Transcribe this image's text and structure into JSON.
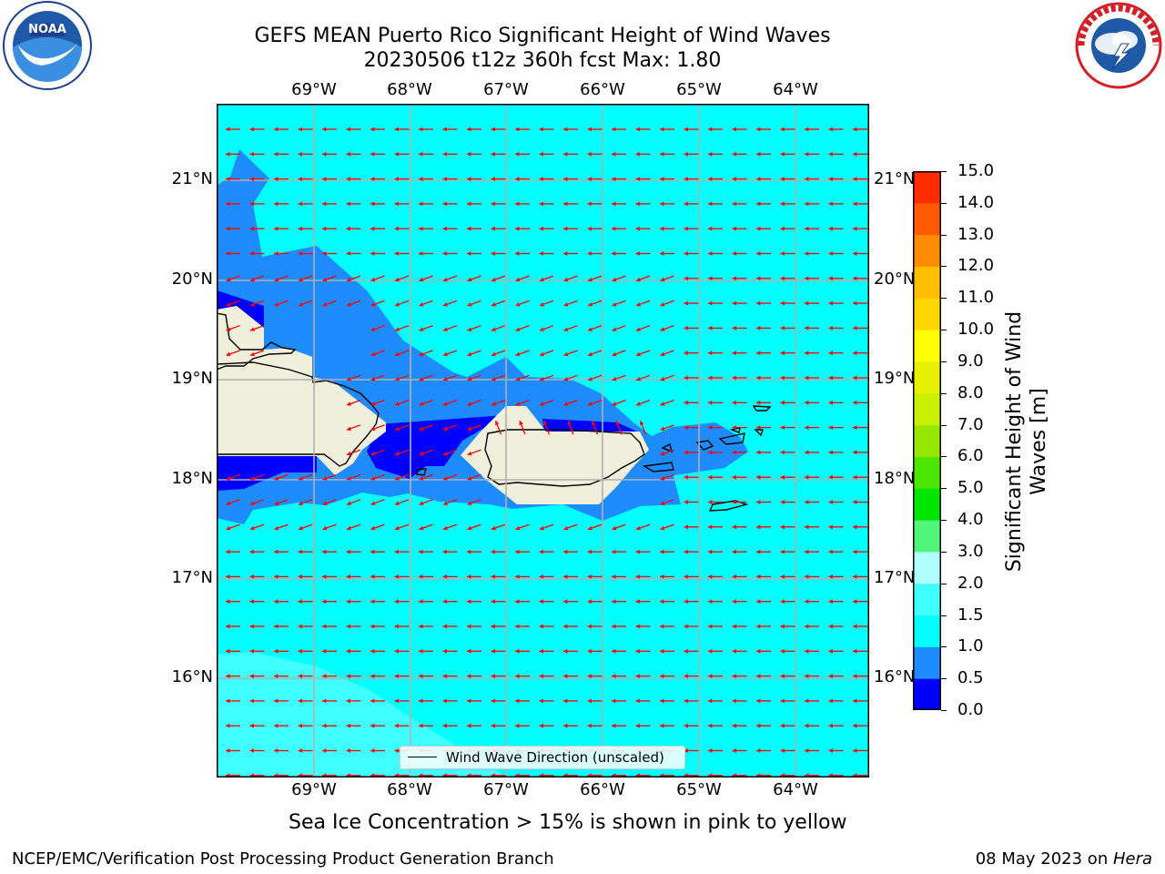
{
  "title": {
    "line1": "GEFS MEAN Puerto Rico Significant Height of Wind Waves",
    "line2": "20230506 t12z 360h fcst   Max: 1.80"
  },
  "map": {
    "lon_labels": [
      "69°W",
      "68°W",
      "67°W",
      "66°W",
      "65°W",
      "64°W"
    ],
    "lat_labels": [
      "21°N",
      "20°N",
      "19°N",
      "18°N",
      "17°N",
      "16°N"
    ],
    "lon_range": [
      -70,
      -63.25
    ],
    "lat_range": [
      15.0,
      21.75
    ],
    "wind_wave_direction": "from east toward west"
  },
  "colorbar": {
    "label": "Significant Height of Wind Waves [m]",
    "ticks": [
      "0.0",
      "0.5",
      "1.0",
      "1.5",
      "2.0",
      "3.0",
      "4.0",
      "5.0",
      "6.0",
      "7.0",
      "8.0",
      "9.0",
      "10.0",
      "11.0",
      "12.0",
      "13.0",
      "14.0",
      "15.0"
    ],
    "colors": [
      "#0000ff",
      "#1e8cff",
      "#00ffff",
      "#40ffff",
      "#b0ffff",
      "#50f57a",
      "#00e600",
      "#4ce600",
      "#96e600",
      "#c8f000",
      "#e6f000",
      "#ffff00",
      "#ffd700",
      "#ffbf00",
      "#ff8c00",
      "#ff5a00",
      "#ff2d00"
    ]
  },
  "legend": {
    "label": "Wind Wave Direction (unscaled)"
  },
  "footer": {
    "ice_note": "Sea Ice Concentration > 15% is shown in pink to yellow",
    "credit": "NCEP/EMC/Verification Post Processing Product Generation Branch",
    "date_prefix": "08 May 2023 on ",
    "host": "Hera"
  },
  "colors": {
    "ocean": "#00ffff",
    "band_low": "#1e8cff",
    "band_lowest": "#0000ff",
    "band_high": "#40ffff",
    "land": "#efefdc",
    "arrow": "#ff0000",
    "grid": "#b0b0b0"
  },
  "icons": {
    "left_logo": "noaa-logo-icon",
    "right_logo": "nws-logo-icon"
  }
}
